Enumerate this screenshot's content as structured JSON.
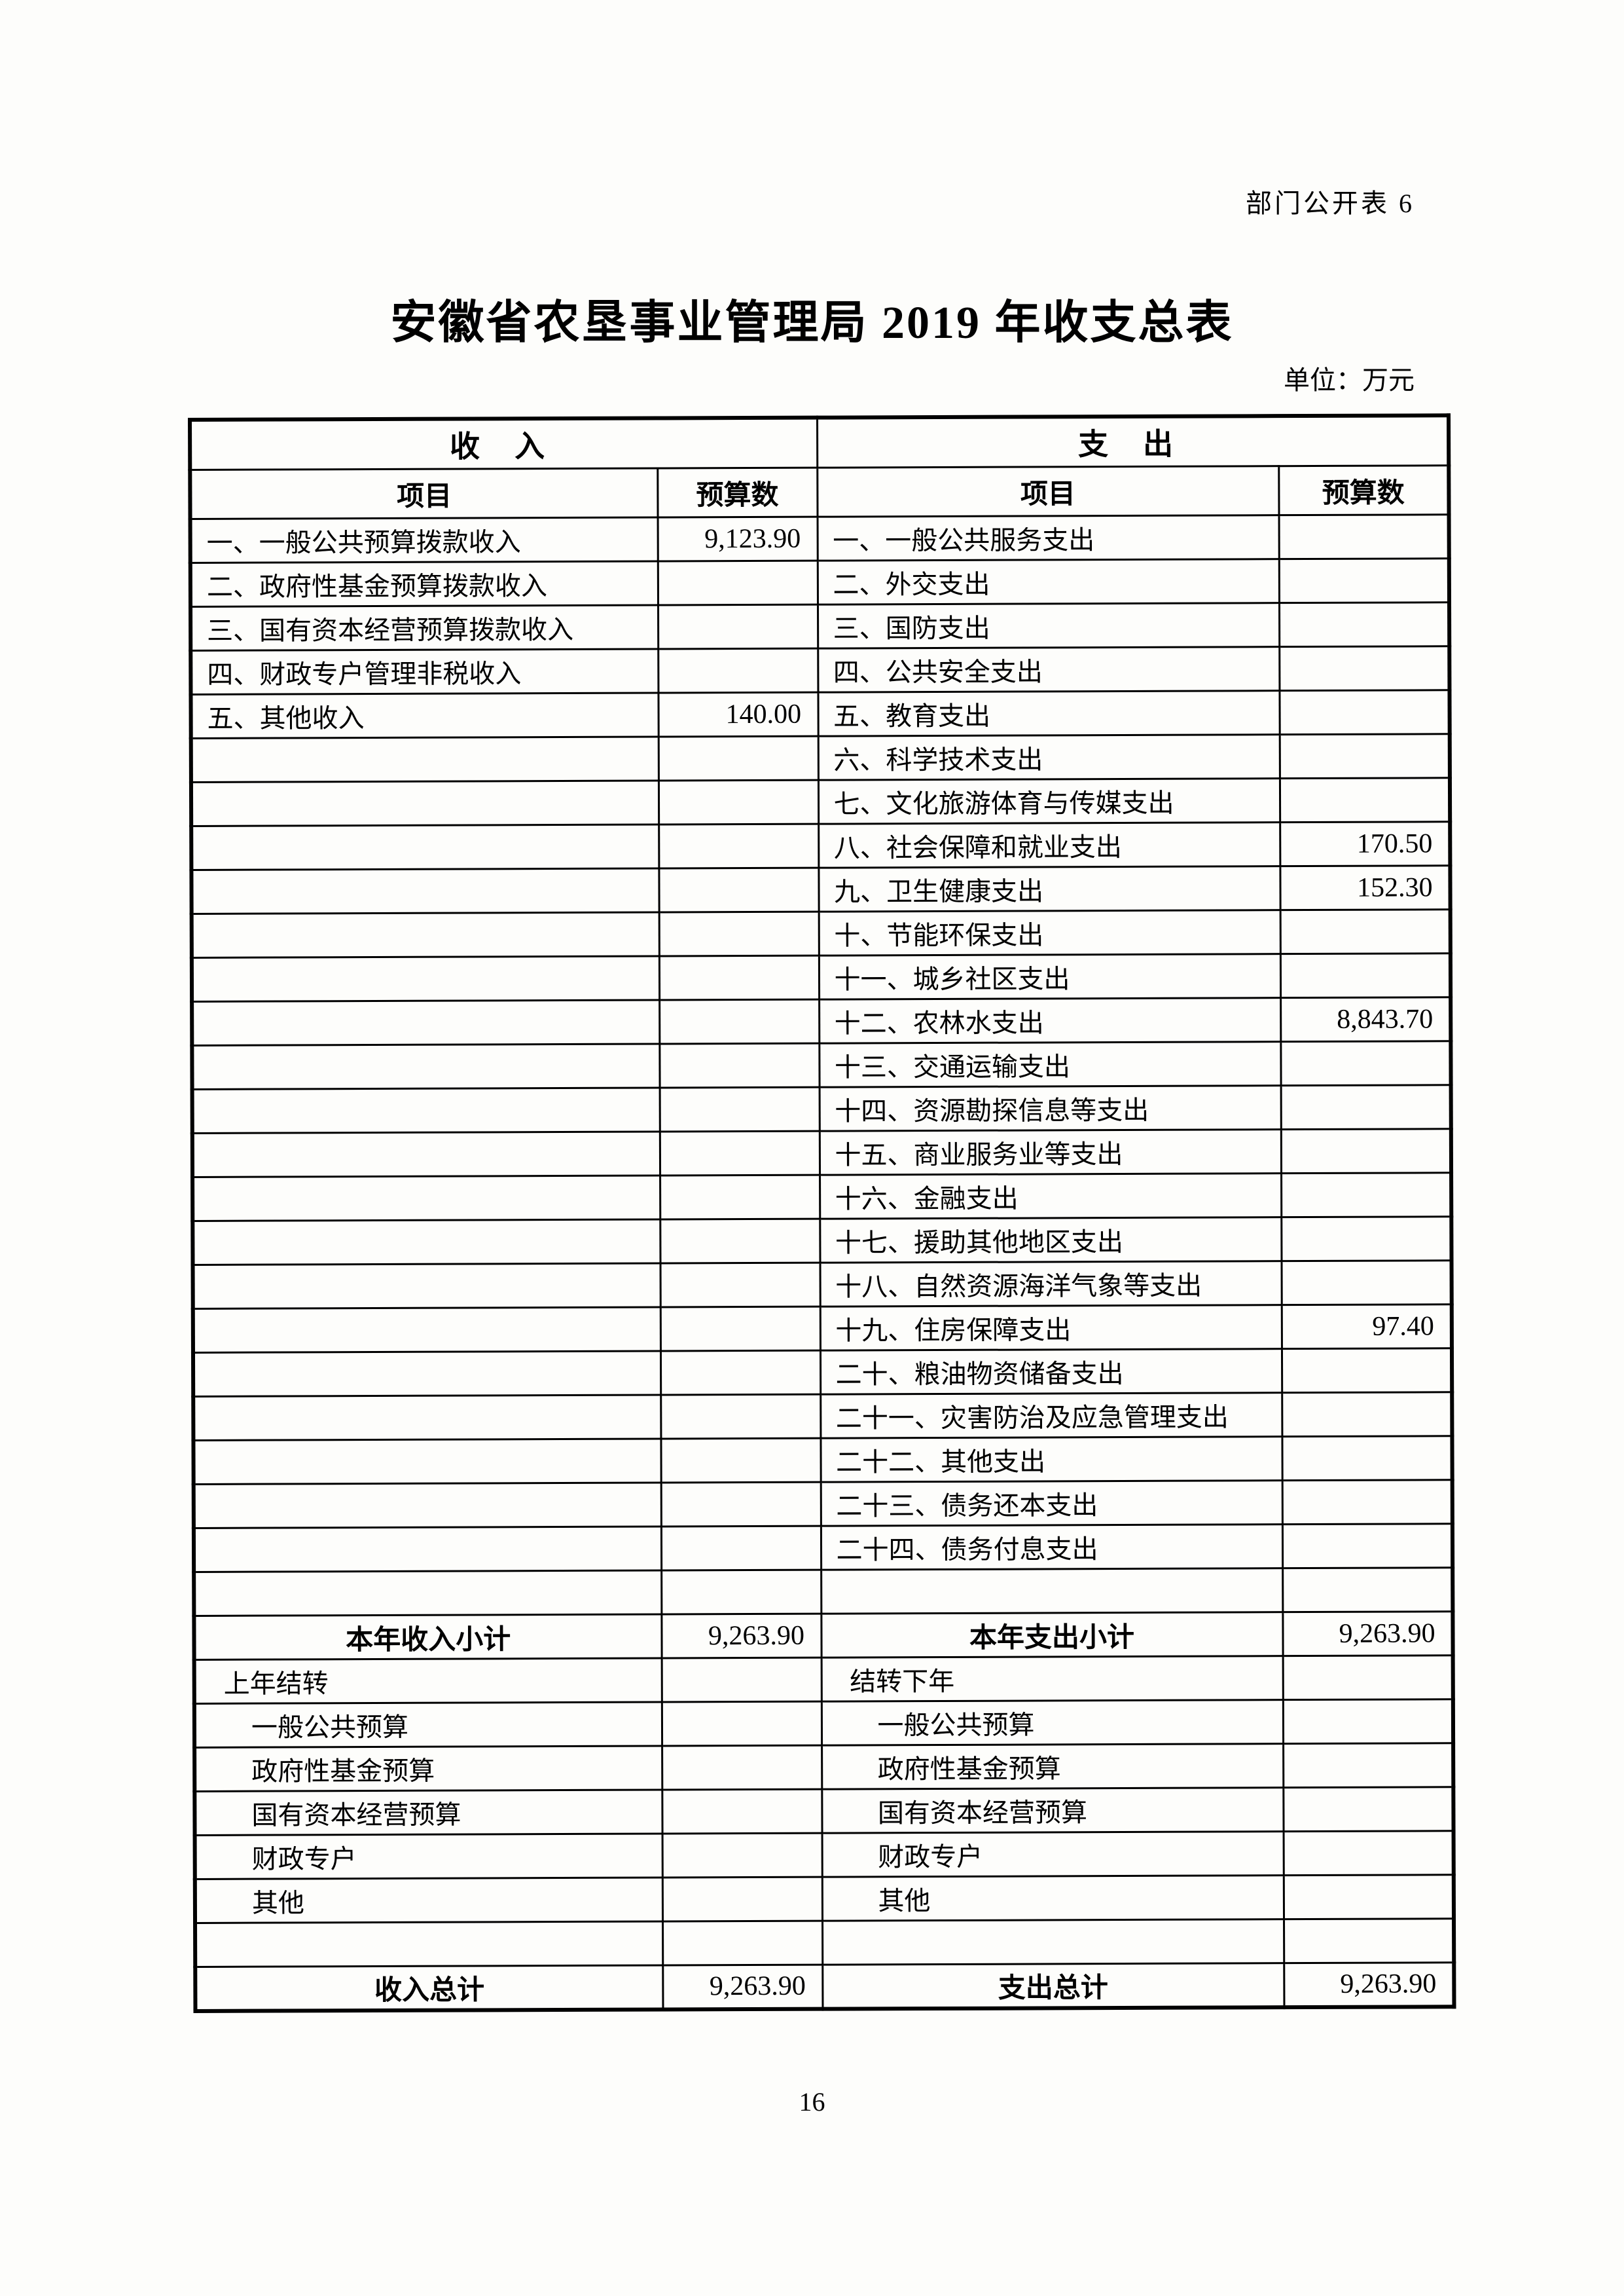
{
  "page": {
    "corner_note": "部门公开表 6",
    "title": "安徽省农垦事业管理局 2019 年收支总表",
    "unit_note": "单位：万元",
    "page_number": "16"
  },
  "table": {
    "income_header": "收 入",
    "expense_header": "支 出",
    "item_header": "项目",
    "budget_header": "预算数",
    "rows": [
      {
        "variant": "data",
        "income_item": "一、一般公共预算拨款收入",
        "income_budget": "9,123.90",
        "expense_item": "一、一般公共服务支出",
        "expense_budget": ""
      },
      {
        "variant": "data",
        "income_item": "二、政府性基金预算拨款收入",
        "income_budget": "",
        "expense_item": "二、外交支出",
        "expense_budget": ""
      },
      {
        "variant": "data",
        "income_item": "三、国有资本经营预算拨款收入",
        "income_budget": "",
        "expense_item": "三、国防支出",
        "expense_budget": ""
      },
      {
        "variant": "data",
        "income_item": "四、财政专户管理非税收入",
        "income_budget": "",
        "expense_item": "四、公共安全支出",
        "expense_budget": ""
      },
      {
        "variant": "data",
        "income_item": "五、其他收入",
        "income_budget": "140.00",
        "expense_item": "五、教育支出",
        "expense_budget": ""
      },
      {
        "variant": "data",
        "income_item": "",
        "income_budget": "",
        "expense_item": "六、科学技术支出",
        "expense_budget": ""
      },
      {
        "variant": "data",
        "income_item": "",
        "income_budget": "",
        "expense_item": "七、文化旅游体育与传媒支出",
        "expense_budget": ""
      },
      {
        "variant": "data",
        "income_item": "",
        "income_budget": "",
        "expense_item": "八、社会保障和就业支出",
        "expense_budget": "170.50"
      },
      {
        "variant": "data",
        "income_item": "",
        "income_budget": "",
        "expense_item": "九、卫生健康支出",
        "expense_budget": "152.30"
      },
      {
        "variant": "data",
        "income_item": "",
        "income_budget": "",
        "expense_item": "十、节能环保支出",
        "expense_budget": ""
      },
      {
        "variant": "data",
        "income_item": "",
        "income_budget": "",
        "expense_item": "十一、城乡社区支出",
        "expense_budget": ""
      },
      {
        "variant": "data",
        "income_item": "",
        "income_budget": "",
        "expense_item": "十二、农林水支出",
        "expense_budget": "8,843.70"
      },
      {
        "variant": "data",
        "income_item": "",
        "income_budget": "",
        "expense_item": "十三、交通运输支出",
        "expense_budget": ""
      },
      {
        "variant": "data",
        "income_item": "",
        "income_budget": "",
        "expense_item": "十四、资源勘探信息等支出",
        "expense_budget": ""
      },
      {
        "variant": "data",
        "income_item": "",
        "income_budget": "",
        "expense_item": "十五、商业服务业等支出",
        "expense_budget": ""
      },
      {
        "variant": "data",
        "income_item": "",
        "income_budget": "",
        "expense_item": "十六、金融支出",
        "expense_budget": ""
      },
      {
        "variant": "data",
        "income_item": "",
        "income_budget": "",
        "expense_item": "十七、援助其他地区支出",
        "expense_budget": ""
      },
      {
        "variant": "data",
        "income_item": "",
        "income_budget": "",
        "expense_item": "十八、自然资源海洋气象等支出",
        "expense_budget": ""
      },
      {
        "variant": "data",
        "income_item": "",
        "income_budget": "",
        "expense_item": "十九、住房保障支出",
        "expense_budget": "97.40"
      },
      {
        "variant": "data",
        "income_item": "",
        "income_budget": "",
        "expense_item": "二十、粮油物资储备支出",
        "expense_budget": ""
      },
      {
        "variant": "data",
        "income_item": "",
        "income_budget": "",
        "expense_item": "二十一、灾害防治及应急管理支出",
        "expense_budget": ""
      },
      {
        "variant": "data",
        "income_item": "",
        "income_budget": "",
        "expense_item": "二十二、其他支出",
        "expense_budget": ""
      },
      {
        "variant": "data",
        "income_item": "",
        "income_budget": "",
        "expense_item": "二十三、债务还本支出",
        "expense_budget": ""
      },
      {
        "variant": "data",
        "income_item": "",
        "income_budget": "",
        "expense_item": "二十四、债务付息支出",
        "expense_budget": ""
      },
      {
        "variant": "blank",
        "income_item": "",
        "income_budget": "",
        "expense_item": "",
        "expense_budget": ""
      },
      {
        "variant": "subtotal",
        "income_item": "本年收入小计",
        "income_budget": "9,263.90",
        "expense_item": "本年支出小计",
        "expense_budget": "9,263.90"
      },
      {
        "variant": "carry",
        "income_item": "上年结转",
        "income_budget": "",
        "expense_item": "结转下年",
        "expense_budget": ""
      },
      {
        "variant": "indent",
        "income_item": "一般公共预算",
        "income_budget": "",
        "expense_item": "一般公共预算",
        "expense_budget": ""
      },
      {
        "variant": "indent",
        "income_item": "政府性基金预算",
        "income_budget": "",
        "expense_item": "政府性基金预算",
        "expense_budget": ""
      },
      {
        "variant": "indent",
        "income_item": "国有资本经营预算",
        "income_budget": "",
        "expense_item": "国有资本经营预算",
        "expense_budget": ""
      },
      {
        "variant": "indent",
        "income_item": "财政专户",
        "income_budget": "",
        "expense_item": "财政专户",
        "expense_budget": ""
      },
      {
        "variant": "indent",
        "income_item": "其他",
        "income_budget": "",
        "expense_item": "其他",
        "expense_budget": ""
      },
      {
        "variant": "blank",
        "income_item": "",
        "income_budget": "",
        "expense_item": "",
        "expense_budget": ""
      },
      {
        "variant": "total",
        "income_item": "收入总计",
        "income_budget": "9,263.90",
        "expense_item": "支出总计",
        "expense_budget": "9,263.90"
      }
    ]
  }
}
